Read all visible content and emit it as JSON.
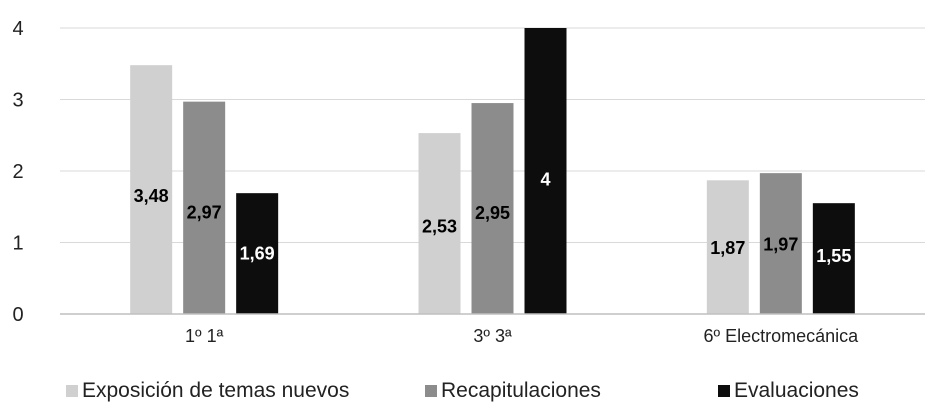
{
  "chart_data": {
    "type": "bar",
    "title": "",
    "xlabel": "",
    "ylabel": "",
    "ylim": [
      0,
      4
    ],
    "yticks": [
      "0",
      "1",
      "2",
      "3",
      "4"
    ],
    "categories": [
      "1º 1ª",
      "3º 3ª",
      "6º Electromecánica"
    ],
    "series": [
      {
        "name": "Exposición de temas nuevos",
        "color": "#d0d0d0",
        "label_color": "#000000",
        "values": [
          3.48,
          2.53,
          1.87
        ],
        "labels": [
          "3,48",
          "2,53",
          "1,87"
        ]
      },
      {
        "name": "Recapitulaciones",
        "color": "#8c8c8c",
        "label_color": "#000000",
        "values": [
          2.97,
          2.95,
          1.97
        ],
        "labels": [
          "2,97",
          "2,95",
          "1,97"
        ]
      },
      {
        "name": "Evaluaciones",
        "color": "#0d0d0d",
        "label_color": "#ffffff",
        "values": [
          1.69,
          4,
          1.55
        ],
        "labels": [
          "1,69",
          "4",
          "1,55"
        ]
      }
    ],
    "grid": true,
    "legend": "bottom"
  }
}
